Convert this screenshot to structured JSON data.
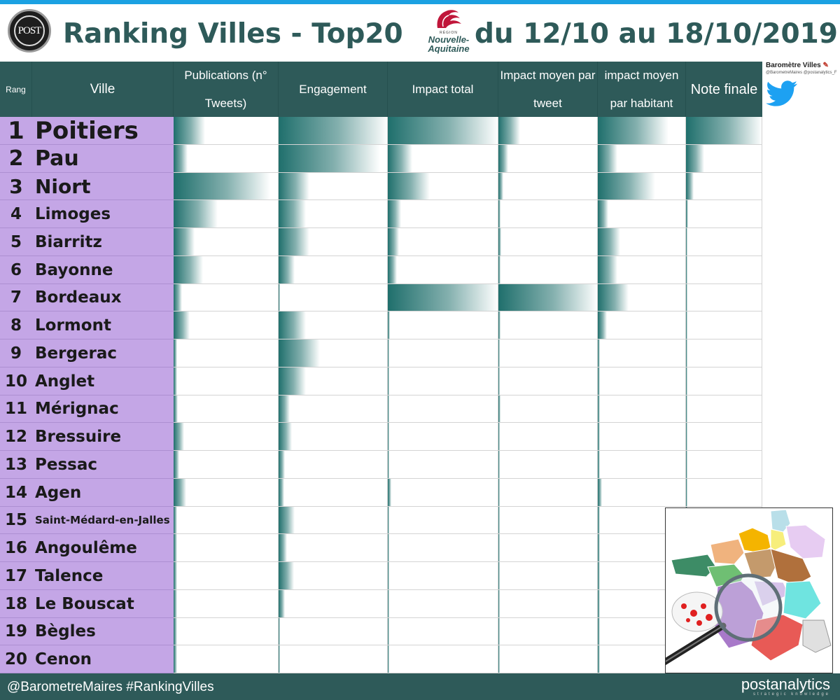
{
  "header": {
    "logo_text": "POST",
    "title_left": "Ranking Villes - Top20",
    "title_right": "du 12/10 au 18/10/2019",
    "region_small": "RÉGION",
    "region_line1": "Nouvelle-",
    "region_line2": "Aquitaine"
  },
  "twitter": {
    "title": "Baromètre Villes",
    "handles": "@BarometreMaires  @postanalytics_F"
  },
  "footer": {
    "hashtags": "@BarometreMaires  #RankingVilles",
    "brand": "postanalytics",
    "brand_sub": "strategic knowledge"
  },
  "colors": {
    "header_bg": "#2e5a59",
    "bar": "#1f6f6c",
    "row_label_bg": "#c4a6e6",
    "accent_top": "#1ba1e2"
  },
  "chart_data": {
    "type": "table",
    "title": "Ranking Villes - Top20 du 12/10 au 18/10/2019",
    "columns": [
      "Rang",
      "Ville",
      "Publications (n° Tweets)",
      "Engagement",
      "Impact total",
      "Impact moyen par tweet",
      "impact moyen par habitant",
      "Note finale"
    ],
    "rows": [
      {
        "rank": "1",
        "city": "Poitiers",
        "values": [
          0.3,
          1.0,
          1.0,
          0.22,
          0.8,
          1.0
        ]
      },
      {
        "rank": "2",
        "city": "Pau",
        "values": [
          0.13,
          0.93,
          0.22,
          0.1,
          0.22,
          0.24
        ]
      },
      {
        "rank": "3",
        "city": "Niort",
        "values": [
          0.92,
          0.28,
          0.38,
          0.05,
          0.65,
          0.1
        ]
      },
      {
        "rank": "4",
        "city": "Limoges",
        "values": [
          0.42,
          0.25,
          0.12,
          0.02,
          0.12,
          0.03
        ]
      },
      {
        "rank": "5",
        "city": "Biarritz",
        "values": [
          0.2,
          0.28,
          0.1,
          0.03,
          0.25,
          0.02
        ]
      },
      {
        "rank": "6",
        "city": "Bayonne",
        "values": [
          0.28,
          0.15,
          0.08,
          0.02,
          0.22,
          0.02
        ]
      },
      {
        "rank": "7",
        "city": "Bordeaux",
        "values": [
          0.08,
          0.0,
          1.0,
          1.0,
          0.35,
          0.02
        ]
      },
      {
        "rank": "8",
        "city": "Lormont",
        "values": [
          0.15,
          0.25,
          0.02,
          0.02,
          0.1,
          0.01
        ]
      },
      {
        "rank": "9",
        "city": "Bergerac",
        "values": [
          0.03,
          0.38,
          0.01,
          0.01,
          0.02,
          0.01
        ]
      },
      {
        "rank": "10",
        "city": "Anglet",
        "values": [
          0.03,
          0.25,
          0.01,
          0.01,
          0.02,
          0.01
        ]
      },
      {
        "rank": "11",
        "city": "Mérignac",
        "values": [
          0.04,
          0.1,
          0.01,
          0.02,
          0.02,
          0.01
        ]
      },
      {
        "rank": "12",
        "city": "Bressuire",
        "values": [
          0.1,
          0.12,
          0.01,
          0.01,
          0.02,
          0.01
        ]
      },
      {
        "rank": "13",
        "city": "Pessac",
        "values": [
          0.05,
          0.06,
          0.01,
          0.01,
          0.02,
          0.01
        ]
      },
      {
        "rank": "14",
        "city": "Agen",
        "values": [
          0.12,
          0.05,
          0.03,
          0.01,
          0.05,
          0.01
        ]
      },
      {
        "rank": "15",
        "city": "Saint-Médard-en-Jalles",
        "values": [
          0.03,
          0.15,
          0.01,
          0.01,
          0.02,
          0.01
        ]
      },
      {
        "rank": "16",
        "city": "Angoulême",
        "values": [
          0.03,
          0.08,
          0.01,
          0.01,
          0.02,
          0.01
        ]
      },
      {
        "rank": "17",
        "city": "Talence",
        "values": [
          0.03,
          0.14,
          0.01,
          0.01,
          0.02,
          0.01
        ]
      },
      {
        "rank": "18",
        "city": "Le Bouscat",
        "values": [
          0.03,
          0.06,
          0.01,
          0.01,
          0.02,
          0.01
        ]
      },
      {
        "rank": "19",
        "city": "Bègles",
        "values": [
          0.03,
          0.01,
          0.01,
          0.01,
          0.02,
          0.01
        ]
      },
      {
        "rank": "20",
        "city": "Cenon",
        "values": [
          0.03,
          0.01,
          0.01,
          0.01,
          0.02,
          0.01
        ]
      }
    ]
  }
}
